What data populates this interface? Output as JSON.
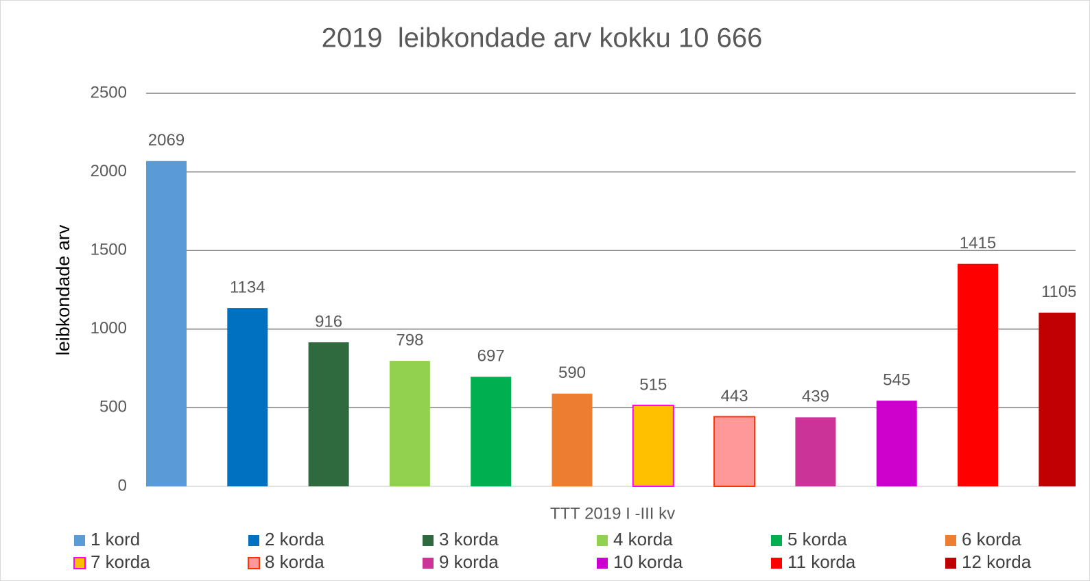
{
  "chart_data": {
    "type": "bar",
    "title": "2019  leibkondade arv kokku 10 666",
    "ylabel": "leibkondade arv",
    "categories": [
      "TTT 2019 I -III kv"
    ],
    "series": [
      {
        "name": "1 kord",
        "color": "#5b9bd5",
        "values": [
          2069
        ]
      },
      {
        "name": "2 korda",
        "color": "#0070c0",
        "values": [
          1134
        ]
      },
      {
        "name": "3 korda",
        "color": "#2f6a3f",
        "values": [
          916
        ]
      },
      {
        "name": "4 korda",
        "color": "#92d050",
        "values": [
          798
        ]
      },
      {
        "name": "5 korda",
        "color": "#00b050",
        "values": [
          697
        ]
      },
      {
        "name": "6 korda",
        "color": "#ed7d31",
        "values": [
          590
        ]
      },
      {
        "name": "7 korda",
        "color": "#ffc000",
        "edgecolor": "#ff00ff",
        "values": [
          515
        ]
      },
      {
        "name": "8 korda",
        "color": "#ff9999",
        "edgecolor": "#ff3300",
        "values": [
          443
        ]
      },
      {
        "name": "9 korda",
        "color": "#cc3399",
        "values": [
          439
        ]
      },
      {
        "name": "10 korda",
        "color": "#cc00cc",
        "values": [
          545
        ]
      },
      {
        "name": "11 korda",
        "color": "#ff0000",
        "values": [
          1415
        ]
      },
      {
        "name": "12 korda",
        "color": "#c00000",
        "values": [
          1105
        ]
      }
    ],
    "ylim": [
      0,
      2500
    ],
    "yticks": [
      0,
      500,
      1000,
      1500,
      2000,
      2500
    ],
    "grid": true,
    "legend": "bottom"
  }
}
